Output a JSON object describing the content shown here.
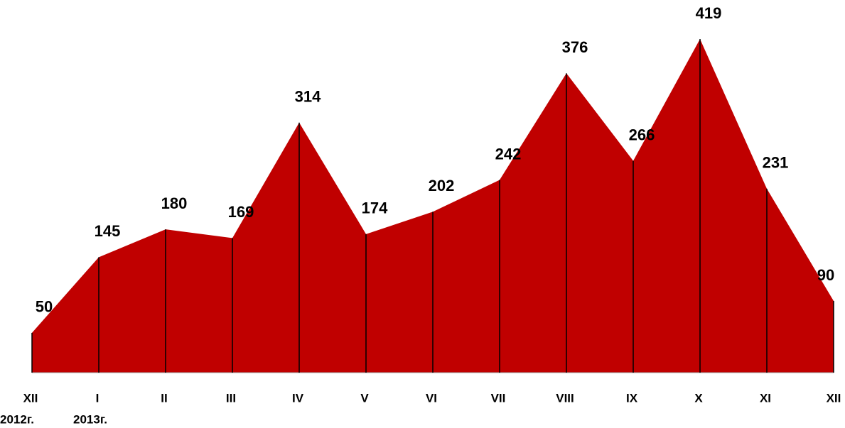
{
  "chart_data": {
    "type": "area",
    "categories": [
      "XII",
      "I",
      "II",
      "III",
      "IV",
      "V",
      "VI",
      "VII",
      "VIII",
      "IX",
      "X",
      "XI",
      "XII"
    ],
    "year_labels": [
      "2012г.",
      "2013г."
    ],
    "values": [
      50,
      145,
      180,
      169,
      314,
      174,
      202,
      242,
      376,
      266,
      419,
      231,
      90
    ],
    "color": "#c00000"
  }
}
